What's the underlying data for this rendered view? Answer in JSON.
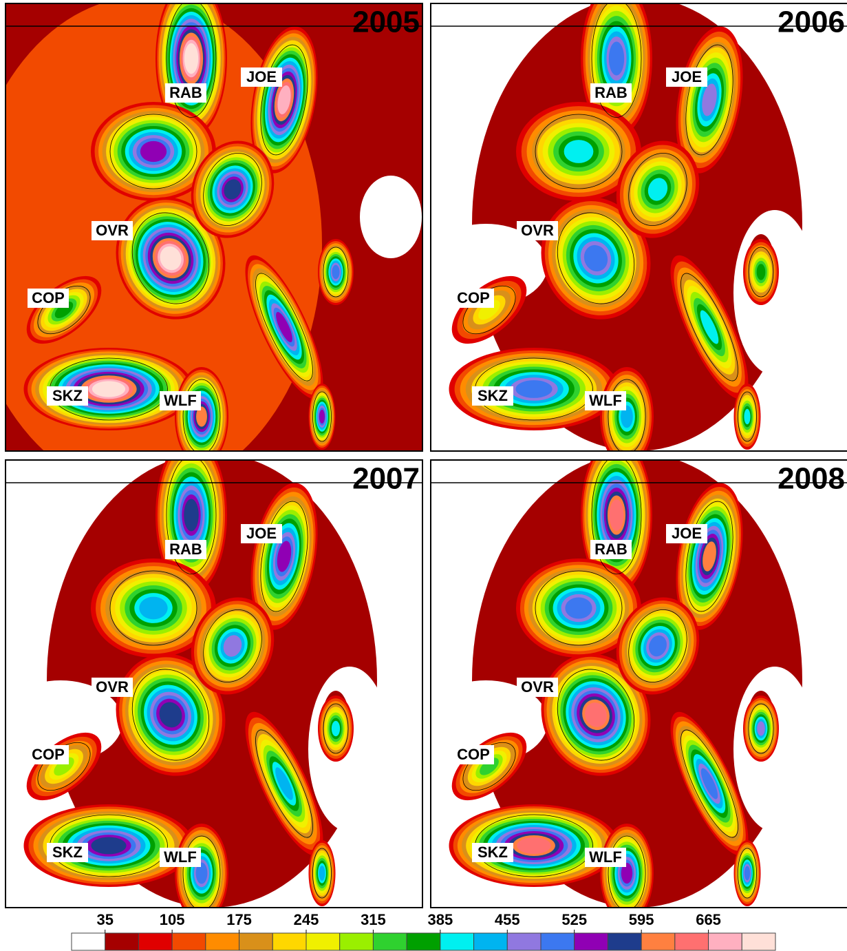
{
  "panels": [
    {
      "year": "2005"
    },
    {
      "year": "2006"
    },
    {
      "year": "2007"
    },
    {
      "year": "2008"
    }
  ],
  "stations": [
    "RAB",
    "JOE",
    "OVR",
    "COP",
    "SKZ",
    "WLF"
  ],
  "colorbar": {
    "lim": [
      0,
      735
    ],
    "ticks": [
      35,
      105,
      175,
      245,
      315,
      385,
      455,
      525,
      595,
      665
    ],
    "colors": [
      "#ffffff",
      "#a50000",
      "#e00000",
      "#f24a00",
      "#ff8c00",
      "#d9901a",
      "#ffd700",
      "#f0f000",
      "#9aef00",
      "#2fd12f",
      "#00a000",
      "#00f0f0",
      "#00b4f0",
      "#9078e0",
      "#3c78f0",
      "#9000b4",
      "#1e3c8c",
      "#ff8040",
      "#ff7070",
      "#ffb0c0",
      "#ffe0d8"
    ]
  }
}
